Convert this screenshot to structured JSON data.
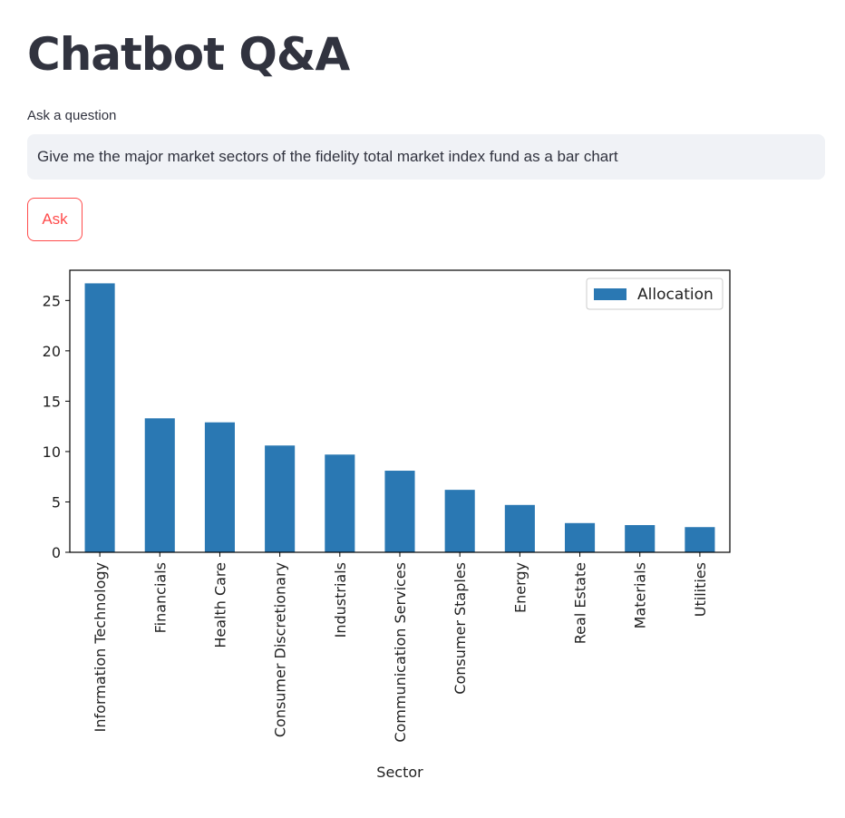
{
  "page": {
    "title": "Chatbot Q&A"
  },
  "question": {
    "label": "Ask a question",
    "value": "Give me the major market sectors of the fidelity total market index fund as a bar chart"
  },
  "ask_button": {
    "label": "Ask"
  },
  "colors": {
    "accent": "#ff4b4b",
    "bar": "#2a78b3",
    "input_bg": "#f0f2f6",
    "text": "#31333f"
  },
  "chart_data": {
    "type": "bar",
    "categories": [
      "Information Technology",
      "Financials",
      "Health Care",
      "Consumer Discretionary",
      "Industrials",
      "Communication Services",
      "Consumer Staples",
      "Energy",
      "Real Estate",
      "Materials",
      "Utilities"
    ],
    "series": [
      {
        "name": "Allocation",
        "values": [
          26.7,
          13.3,
          12.9,
          10.6,
          9.7,
          8.1,
          6.2,
          4.7,
          2.9,
          2.7,
          2.5
        ]
      }
    ],
    "xlabel": "Sector",
    "ylabel": "",
    "yticks": [
      "0",
      "5",
      "10",
      "15",
      "20",
      "25"
    ],
    "ylim": [
      0,
      28
    ],
    "legend_placement": "top-right",
    "grid": false
  }
}
